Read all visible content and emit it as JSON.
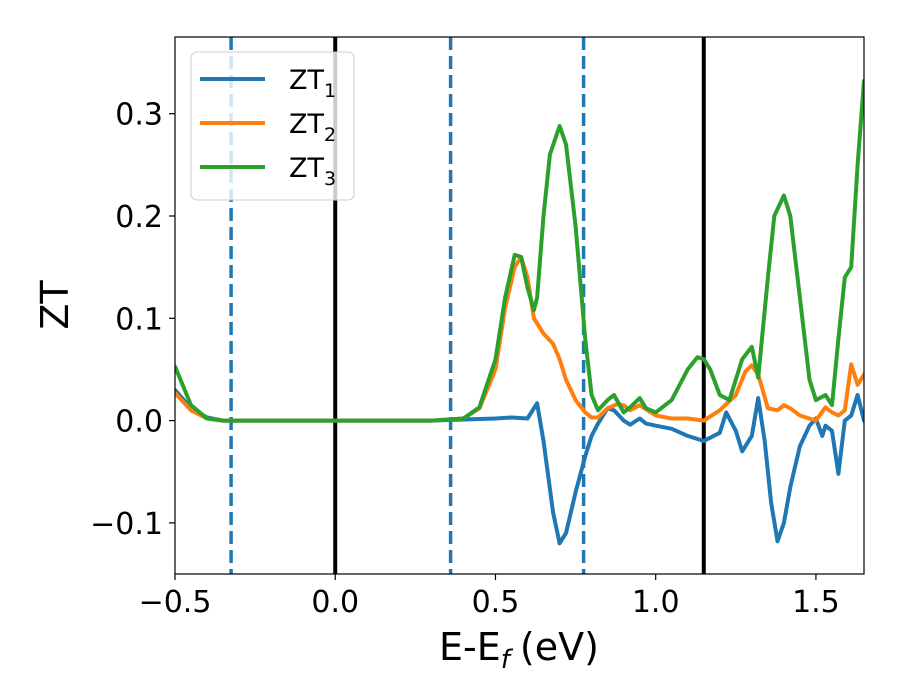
{
  "chart_data": {
    "type": "line",
    "xlabel_main": "E-E",
    "xlabel_sub": "f",
    "xlabel_unit": "(eV)",
    "ylabel": "ZT",
    "xlim": [
      -0.5,
      1.65
    ],
    "ylim": [
      -0.15,
      0.375
    ],
    "xticks": [
      -0.5,
      0.0,
      0.5,
      1.0,
      1.5
    ],
    "xtick_labels": [
      "−0.5",
      "0.0",
      "0.5",
      "1.0",
      "1.5"
    ],
    "yticks": [
      -0.1,
      0.0,
      0.1,
      0.2,
      0.3
    ],
    "ytick_labels": [
      "−0.1",
      "0.0",
      "0.1",
      "0.2",
      "0.3"
    ],
    "grid": false,
    "legend_placement": "top-left",
    "vlines_solid": [
      0.0,
      1.15
    ],
    "vlines_dashed": [
      -0.325,
      0.36,
      0.775
    ],
    "vline_solid_color": "#000000",
    "vline_dashed_color": "#1f77b4",
    "series": [
      {
        "name": "ZT",
        "subscript": "1",
        "color": "#1f77b4",
        "x": [
          -0.5,
          -0.45,
          -0.4,
          -0.35,
          -0.3,
          0.0,
          0.3,
          0.4,
          0.5,
          0.55,
          0.6,
          0.63,
          0.65,
          0.68,
          0.7,
          0.72,
          0.75,
          0.78,
          0.8,
          0.82,
          0.85,
          0.87,
          0.9,
          0.92,
          0.95,
          0.97,
          1.0,
          1.05,
          1.1,
          1.15,
          1.2,
          1.22,
          1.25,
          1.27,
          1.3,
          1.32,
          1.34,
          1.36,
          1.38,
          1.4,
          1.42,
          1.45,
          1.48,
          1.5,
          1.52,
          1.53,
          1.55,
          1.57,
          1.59,
          1.61,
          1.63,
          1.65
        ],
        "y": [
          0.03,
          0.012,
          0.003,
          0.0,
          0.0,
          0.0,
          0.0,
          0.001,
          0.002,
          0.003,
          0.002,
          0.017,
          -0.02,
          -0.09,
          -0.12,
          -0.11,
          -0.07,
          -0.035,
          -0.015,
          -0.003,
          0.012,
          0.01,
          0.0,
          -0.004,
          0.002,
          -0.003,
          -0.005,
          -0.008,
          -0.015,
          -0.02,
          -0.012,
          0.008,
          -0.01,
          -0.03,
          -0.015,
          0.022,
          -0.02,
          -0.08,
          -0.118,
          -0.1,
          -0.065,
          -0.025,
          -0.005,
          0.002,
          -0.015,
          -0.005,
          -0.01,
          -0.052,
          0.0,
          0.005,
          0.025,
          0.0
        ]
      },
      {
        "name": "ZT",
        "subscript": "2",
        "color": "#ff7f0e",
        "x": [
          -0.5,
          -0.45,
          -0.4,
          -0.35,
          -0.3,
          0.0,
          0.3,
          0.4,
          0.45,
          0.5,
          0.53,
          0.56,
          0.58,
          0.6,
          0.62,
          0.65,
          0.68,
          0.7,
          0.72,
          0.75,
          0.78,
          0.8,
          0.82,
          0.85,
          0.88,
          0.9,
          0.92,
          0.95,
          1.0,
          1.05,
          1.1,
          1.15,
          1.2,
          1.25,
          1.28,
          1.3,
          1.32,
          1.35,
          1.38,
          1.4,
          1.42,
          1.45,
          1.5,
          1.53,
          1.55,
          1.57,
          1.59,
          1.61,
          1.63,
          1.65
        ],
        "y": [
          0.027,
          0.01,
          0.002,
          0.0,
          0.0,
          0.0,
          0.0,
          0.002,
          0.012,
          0.05,
          0.11,
          0.15,
          0.16,
          0.14,
          0.1,
          0.085,
          0.075,
          0.06,
          0.04,
          0.02,
          0.008,
          0.003,
          0.003,
          0.012,
          0.016,
          0.015,
          0.01,
          0.015,
          0.005,
          0.002,
          0.002,
          0.0,
          0.01,
          0.025,
          0.048,
          0.054,
          0.045,
          0.012,
          0.01,
          0.015,
          0.012,
          0.005,
          0.0,
          0.013,
          0.008,
          0.005,
          0.01,
          0.055,
          0.035,
          0.045
        ]
      },
      {
        "name": "ZT",
        "subscript": "3",
        "color": "#2ca02c",
        "x": [
          -0.5,
          -0.45,
          -0.4,
          -0.35,
          -0.3,
          0.0,
          0.3,
          0.4,
          0.45,
          0.5,
          0.53,
          0.56,
          0.58,
          0.6,
          0.62,
          0.63,
          0.65,
          0.67,
          0.7,
          0.72,
          0.75,
          0.78,
          0.8,
          0.82,
          0.85,
          0.87,
          0.9,
          0.92,
          0.95,
          0.97,
          1.0,
          1.05,
          1.1,
          1.13,
          1.15,
          1.17,
          1.2,
          1.23,
          1.27,
          1.3,
          1.32,
          1.35,
          1.37,
          1.4,
          1.42,
          1.45,
          1.48,
          1.5,
          1.53,
          1.55,
          1.57,
          1.59,
          1.61,
          1.63,
          1.65
        ],
        "y": [
          0.053,
          0.015,
          0.002,
          0.0,
          0.0,
          0.0,
          0.0,
          0.002,
          0.013,
          0.06,
          0.12,
          0.162,
          0.16,
          0.13,
          0.108,
          0.12,
          0.2,
          0.26,
          0.288,
          0.27,
          0.19,
          0.08,
          0.025,
          0.01,
          0.02,
          0.025,
          0.008,
          0.013,
          0.022,
          0.012,
          0.008,
          0.02,
          0.05,
          0.062,
          0.06,
          0.05,
          0.025,
          0.02,
          0.06,
          0.072,
          0.042,
          0.14,
          0.2,
          0.22,
          0.2,
          0.12,
          0.04,
          0.02,
          0.025,
          0.015,
          0.08,
          0.14,
          0.15,
          0.25,
          0.332
        ]
      }
    ]
  }
}
